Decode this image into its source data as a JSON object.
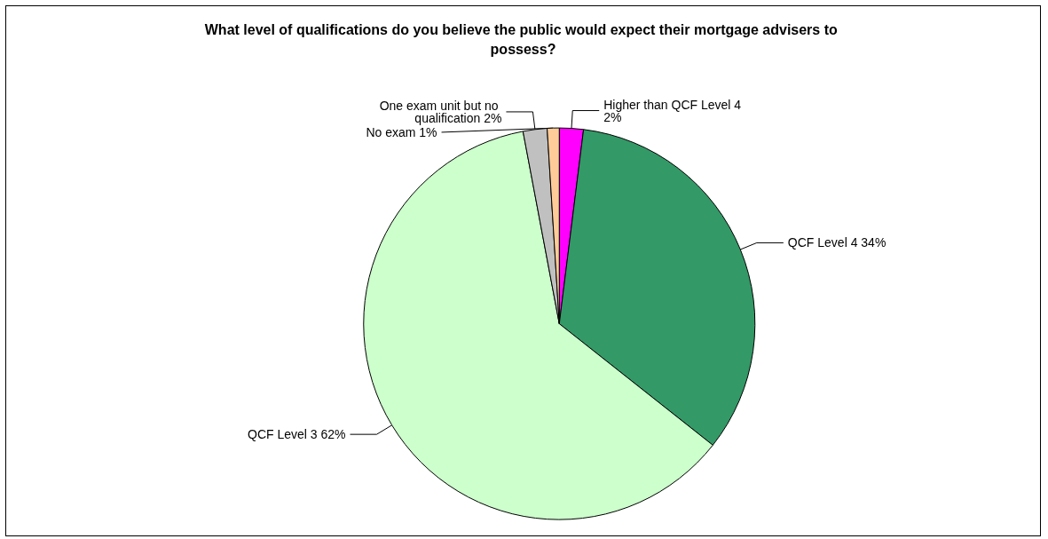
{
  "chart_data": {
    "type": "pie",
    "title": "What level of qualifications do you believe the public would expect their mortgage advisers to possess?",
    "categories": [
      "Higher than QCF Level 4",
      "QCF Level 4",
      "QCF Level 3",
      "One exam unit but no qualification",
      "No exam"
    ],
    "values": [
      2,
      34,
      62,
      2,
      1
    ],
    "value_labels": [
      "2%",
      "34%",
      "62%",
      "2%",
      "1%"
    ],
    "colors": [
      "#ff00ff",
      "#339966",
      "#ccffcc",
      "#c0c0c0",
      "#ffcc99"
    ],
    "legend": false
  }
}
